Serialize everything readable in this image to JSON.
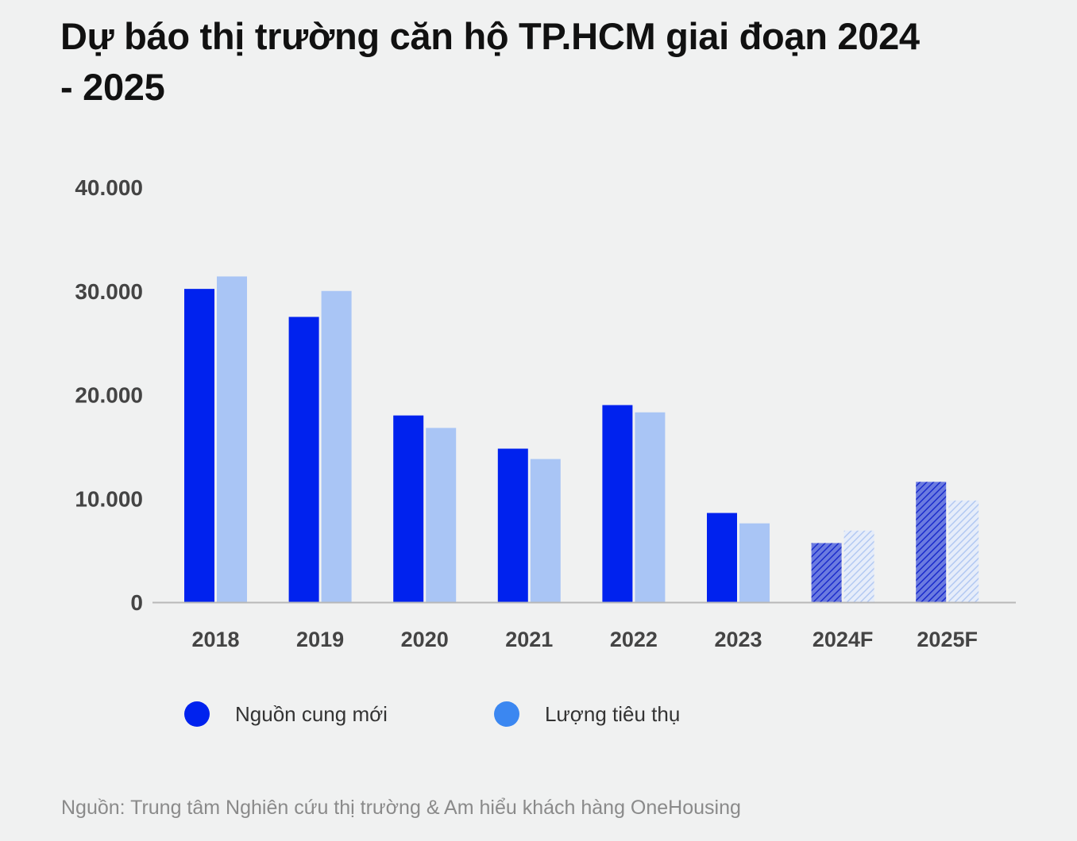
{
  "title": "Dự báo thị trường căn hộ TP.HCM giai đoạn 2024 - 2025",
  "source": "Nguồn: Trung tâm Nghiên cứu thị trường & Am hiểu khách hàng OneHousing",
  "colors": {
    "new_supply": "#0022ee",
    "absorption": "#a9c5f5",
    "legend_absorption": "#3b87f1",
    "axis": "#b8b8b8"
  },
  "chart_data": {
    "type": "bar",
    "categories": [
      "2018",
      "2019",
      "2020",
      "2021",
      "2022",
      "2023",
      "2024F",
      "2025F"
    ],
    "forecast_categories": [
      "2024F",
      "2025F"
    ],
    "series": [
      {
        "name": "Nguồn cung mới",
        "values": [
          30200,
          27500,
          18000,
          14800,
          19000,
          8600,
          5700,
          11600
        ]
      },
      {
        "name": "Lượng tiêu thụ",
        "values": [
          31400,
          30000,
          16800,
          13800,
          18300,
          7600,
          6900,
          9800
        ]
      }
    ],
    "yticks": [
      "0",
      "10.000",
      "20.000",
      "30.000",
      "40.000"
    ],
    "ylim": [
      0,
      40000
    ],
    "legend_position": "bottom",
    "grid": false
  }
}
